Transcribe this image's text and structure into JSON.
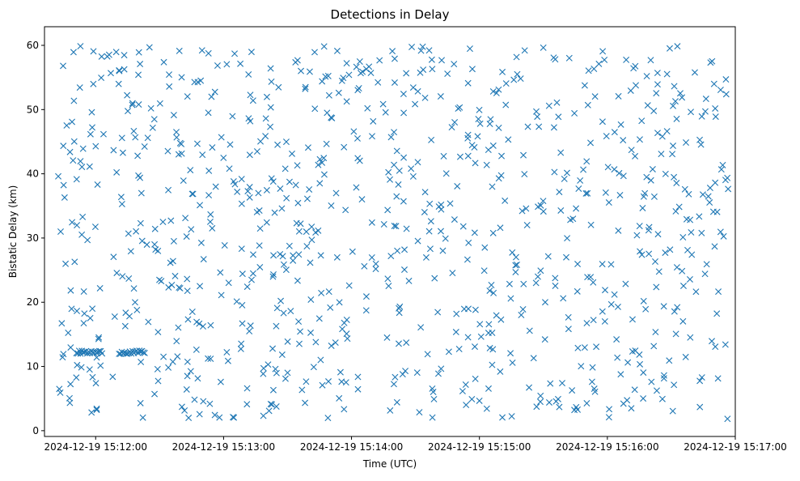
{
  "chart_data": {
    "type": "scatter",
    "title": "Detections in Delay",
    "xlabel": "Time (UTC)",
    "ylabel": "Bistatic Delay (km)",
    "x_ticks": [
      "2024-12-19 15:12:00",
      "2024-12-19 15:13:00",
      "2024-12-19 15:14:00",
      "2024-12-19 15:15:00",
      "2024-12-19 15:16:00",
      "2024-12-19 15:17:00"
    ],
    "y_ticks": [
      0,
      10,
      20,
      30,
      40,
      50,
      60
    ],
    "xlim": [
      "2024-12-19 15:11:36",
      "2024-12-19 15:17:00"
    ],
    "ylim": [
      -0.9,
      62.9
    ],
    "marker": "x",
    "grid": false,
    "colors": {
      "series": "#1f77b4"
    },
    "series": [
      {
        "x_start": "2024-12-19 15:11:42",
        "x_end": "2024-12-19 15:16:57",
        "point_count": 900,
        "y_range": [
          1.8,
          59.9
        ],
        "clusters": [
          {
            "x_start": "2024-12-19 15:11:51",
            "x_end": "2024-12-19 15:12:03",
            "y": 12.2
          },
          {
            "x_start": "2024-12-19 15:12:11",
            "x_end": "2024-12-19 15:12:23",
            "y": 12.2
          }
        ]
      }
    ]
  }
}
